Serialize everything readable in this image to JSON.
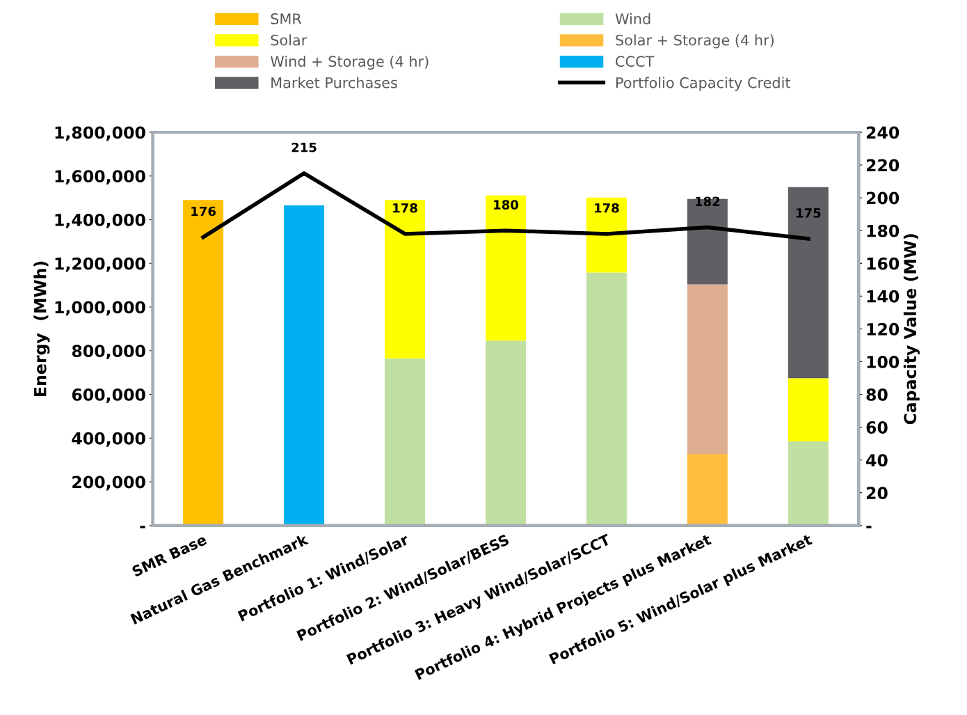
{
  "chart_data": {
    "type": "bar",
    "stacked": true,
    "categories": [
      "SMR Base",
      "Natural Gas Benchmark",
      "Portfolio 1: Wind/Solar",
      "Portfolio 2: Wind/Solar/BESS",
      "Portfolio 3: Heavy Wind/Solar/SCCT",
      "Portfolio 4: Hybrid Projects plus Market",
      "Portfolio 5: Wind/Solar plus Market"
    ],
    "ylabel": "Energy  (MWh)",
    "y2label": "Capacity Value (MW)",
    "ylim": [
      0,
      1800000
    ],
    "yticks": [
      {
        "value": 0,
        "label": "-"
      },
      {
        "value": 200000,
        "label": "200,000"
      },
      {
        "value": 400000,
        "label": "400,000"
      },
      {
        "value": 600000,
        "label": "600,000"
      },
      {
        "value": 800000,
        "label": "800,000"
      },
      {
        "value": 1000000,
        "label": "1,000,000"
      },
      {
        "value": 1200000,
        "label": "1,200,000"
      },
      {
        "value": 1400000,
        "label": "1,400,000"
      },
      {
        "value": 1600000,
        "label": "1,600,000"
      },
      {
        "value": 1800000,
        "label": "1,800,000"
      }
    ],
    "y2lim": [
      0,
      240
    ],
    "y2ticks": [
      {
        "value": 0,
        "label": "-"
      },
      20,
      40,
      60,
      80,
      100,
      120,
      140,
      160,
      180,
      200,
      220,
      240
    ],
    "grid": false,
    "legend": "top",
    "series": [
      {
        "name": "SMR",
        "color": "#ffc000",
        "values": [
          1490000,
          null,
          null,
          null,
          null,
          null,
          null
        ]
      },
      {
        "name": "Wind",
        "color": "#c0e0a2",
        "values": [
          null,
          null,
          765000,
          846000,
          1158000,
          null,
          385000
        ]
      },
      {
        "name": "Solar",
        "color": "#ffff00",
        "values": [
          null,
          null,
          725000,
          665000,
          343000,
          null,
          289000
        ]
      },
      {
        "name": "Solar + Storage (4 hr)",
        "color": "#ffbe40",
        "values": [
          null,
          null,
          null,
          null,
          null,
          328000,
          null
        ]
      },
      {
        "name": "Wind + Storage (4 hr)",
        "color": "#e0ae92",
        "values": [
          null,
          null,
          null,
          null,
          null,
          776000,
          null
        ]
      },
      {
        "name": "CCCT",
        "color": "#00b0f0",
        "values": [
          null,
          1465000,
          null,
          null,
          null,
          null,
          null
        ]
      },
      {
        "name": "Market Purchases",
        "color": "#5f5f64",
        "values": [
          null,
          null,
          null,
          null,
          null,
          391000,
          875000
        ]
      },
      {
        "name": "Portfolio Capacity Credit",
        "type": "line",
        "axis": "y2",
        "color": "#000000",
        "data_labels": true,
        "values": [
          176,
          215,
          178,
          180,
          178,
          182,
          175
        ]
      }
    ]
  }
}
